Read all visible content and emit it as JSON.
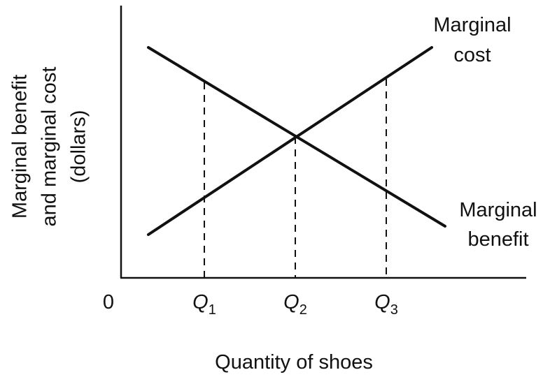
{
  "y_axis_label": [
    "Marginal benefit",
    "and marginal cost",
    "(dollars)"
  ],
  "x_axis_label": "Quantity of shoes",
  "origin_label": "0",
  "x_ticks": [
    {
      "letter": "Q",
      "sub": "1"
    },
    {
      "letter": "Q",
      "sub": "2"
    },
    {
      "letter": "Q",
      "sub": "3"
    }
  ],
  "curves": [
    {
      "label": [
        "Marginal",
        "cost"
      ]
    },
    {
      "label": [
        "Marginal",
        "benefit"
      ]
    }
  ]
}
